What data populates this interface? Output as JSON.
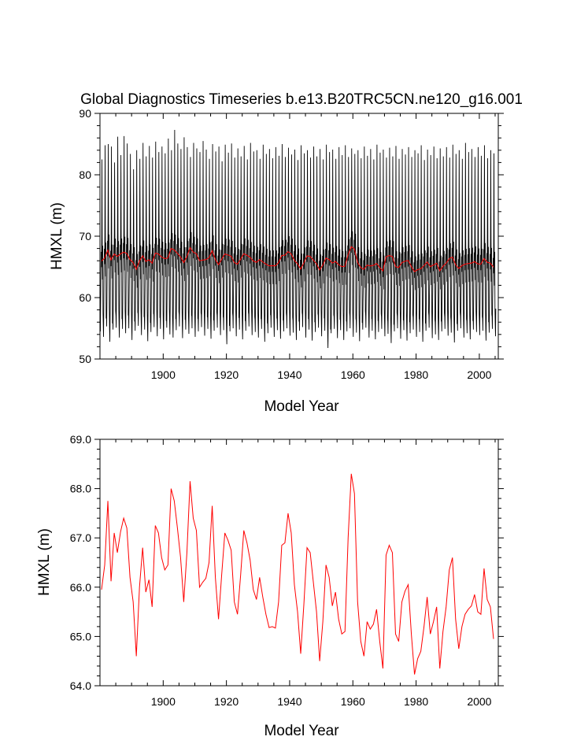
{
  "page": {
    "background": "#ffffff"
  },
  "chart_data": [
    {
      "type": "line",
      "title": "Global Diagnostics Timeseries b.e13.B20TRC5CN.ne120_g16.001",
      "xlabel": "Model Year",
      "ylabel": "HMXL (m)",
      "xlim": [
        1880,
        2006
      ],
      "ylim": [
        50,
        90
      ],
      "x_ticks": [
        1900,
        1920,
        1940,
        1960,
        1980,
        2000
      ],
      "y_ticks": [
        50,
        60,
        70,
        80,
        90
      ],
      "x_tick_labels": [
        "1900",
        "1920",
        "1940",
        "1960",
        "1980",
        "2000"
      ],
      "y_tick_labels": [
        "50",
        "60",
        "70",
        "80",
        "90"
      ],
      "grid": false,
      "legend": "none",
      "series": [
        {
          "kind": "monthly",
          "color": "#000000",
          "description_note": "monthly values with seasonal cycle; annual peak values per year",
          "annual_peak": [
            82.5,
            84.8,
            85.0,
            84.6,
            82.0,
            86.2,
            83.2,
            86.3,
            85.1,
            83.4,
            80.9,
            84.0,
            82.6,
            85.2,
            83.0,
            84.7,
            82.8,
            85.4,
            83.7,
            84.6,
            83.5,
            85.9,
            84.0,
            87.3,
            85.1,
            84.2,
            86.1,
            84.5,
            82.9,
            85.2,
            84.3,
            83.7,
            85.5,
            84.1,
            82.6,
            85.0,
            83.8,
            84.6,
            82.2,
            84.9,
            83.6,
            85.1,
            82.8,
            84.3,
            83.0,
            84.7,
            82.5,
            85.2,
            83.8,
            84.0,
            82.6,
            84.9,
            83.4,
            84.2,
            82.7,
            84.5,
            83.1,
            85.0,
            82.9,
            84.4,
            83.3,
            84.1,
            82.4,
            84.8,
            83.5,
            84.0,
            82.8,
            84.6,
            83.0,
            84.2,
            82.5,
            84.9,
            83.7,
            84.1,
            82.6,
            84.5,
            83.2,
            84.8,
            82.9,
            84.3,
            83.4,
            84.0,
            82.7,
            84.6,
            83.1,
            84.2,
            82.5,
            84.9,
            83.6,
            84.1,
            82.8,
            84.4,
            83.0,
            84.7,
            82.6,
            84.2,
            83.3,
            84.5,
            82.9,
            84.0,
            83.5,
            84.8,
            82.4,
            84.1,
            83.2,
            84.6,
            82.7,
            84.3,
            83.0,
            84.5,
            82.8,
            84.9,
            83.4,
            84.0,
            82.6,
            85.2,
            83.7,
            84.2,
            82.9,
            84.5,
            83.1,
            84.8,
            82.7,
            84.0,
            83.5,
            84.6
          ],
          "annual_trough": [
            54.5,
            53.6,
            55.3,
            52.8,
            54.8,
            55.1,
            53.5,
            54.9,
            54.2,
            55.0,
            53.1,
            54.6,
            55.4,
            53.9,
            54.8,
            52.9,
            54.4,
            55.2,
            53.7,
            54.9,
            53.2,
            55.1,
            54.0,
            53.5,
            54.7,
            55.3,
            53.4,
            54.8,
            54.1,
            55.0,
            53.6,
            54.5,
            55.2,
            53.8,
            54.9,
            53.3,
            54.6,
            55.1,
            53.9,
            54.7,
            52.4,
            54.5,
            55.0,
            53.7,
            54.8,
            53.2,
            54.6,
            55.3,
            53.9,
            54.4,
            53.5,
            54.9,
            52.8,
            54.2,
            55.1,
            53.6,
            54.7,
            53.3,
            54.5,
            55.0,
            53.8,
            54.3,
            53.1,
            54.6,
            55.2,
            53.5,
            54.8,
            53.0,
            54.4,
            55.1,
            53.7,
            54.6,
            51.8,
            54.2,
            54.9,
            53.4,
            54.7,
            53.1,
            54.5,
            55.0,
            53.6,
            54.3,
            52.9,
            54.8,
            55.1,
            53.5,
            54.6,
            53.2,
            54.4,
            54.9,
            53.7,
            54.1,
            52.6,
            54.5,
            55.0,
            53.3,
            54.7,
            53.0,
            54.2,
            54.8,
            53.6,
            54.4,
            52.8,
            54.6,
            55.1,
            53.4,
            54.0,
            53.1,
            54.5,
            54.9,
            53.8,
            54.3,
            52.7,
            54.6,
            55.0,
            53.5,
            54.2,
            53.2,
            54.8,
            54.4,
            53.9,
            54.6,
            53.0,
            54.3,
            54.9,
            53.7
          ]
        },
        {
          "kind": "annual",
          "color": "#ff0000",
          "values_ref": "annual_mean"
        }
      ]
    },
    {
      "type": "line",
      "title": "",
      "xlabel": "Model Year",
      "ylabel": "HMXL (m)",
      "xlim": [
        1880,
        2006
      ],
      "ylim": [
        64.0,
        69.0
      ],
      "x_ticks": [
        1900,
        1920,
        1940,
        1960,
        1980,
        2000
      ],
      "y_ticks": [
        64.0,
        65.0,
        66.0,
        67.0,
        68.0,
        69.0
      ],
      "x_tick_labels": [
        "1900",
        "1920",
        "1940",
        "1960",
        "1980",
        "2000"
      ],
      "y_tick_labels": [
        "64.0",
        "65.0",
        "66.0",
        "67.0",
        "68.0",
        "69.0"
      ],
      "grid": false,
      "legend": "none",
      "series": [
        {
          "kind": "annual",
          "color": "#ff0000",
          "values_ref": "annual_mean"
        }
      ]
    }
  ],
  "annual_mean": {
    "x_start": 1880.5,
    "x_step": 1,
    "values": [
      65.95,
      66.45,
      67.75,
      66.12,
      67.1,
      66.7,
      67.12,
      67.4,
      67.2,
      66.2,
      65.7,
      64.6,
      66.0,
      66.8,
      65.9,
      66.15,
      65.6,
      67.25,
      67.1,
      66.6,
      66.35,
      66.45,
      68.0,
      67.75,
      67.2,
      66.6,
      65.7,
      66.7,
      68.15,
      67.4,
      67.15,
      66.0,
      66.1,
      66.18,
      66.5,
      67.65,
      66.2,
      65.35,
      66.25,
      67.1,
      66.95,
      66.75,
      65.7,
      65.45,
      66.25,
      67.15,
      66.9,
      66.55,
      65.95,
      65.75,
      66.2,
      65.8,
      65.45,
      65.18,
      65.2,
      65.17,
      65.7,
      66.85,
      66.9,
      67.5,
      67.1,
      66.05,
      65.5,
      64.65,
      65.65,
      66.8,
      66.7,
      66.1,
      65.5,
      64.5,
      65.3,
      66.45,
      66.2,
      65.62,
      65.9,
      65.35,
      65.05,
      65.1,
      67.0,
      68.3,
      67.9,
      65.7,
      64.9,
      64.6,
      65.3,
      65.15,
      65.25,
      65.55,
      64.9,
      64.35,
      66.65,
      66.85,
      66.7,
      65.05,
      64.9,
      65.7,
      65.92,
      66.05,
      65.05,
      64.23,
      64.55,
      64.7,
      65.2,
      65.8,
      65.05,
      65.3,
      65.6,
      64.35,
      65.1,
      65.6,
      66.35,
      66.6,
      65.35,
      64.75,
      65.2,
      65.45,
      65.55,
      65.62,
      65.85,
      65.5,
      65.45,
      66.38,
      65.75,
      65.6,
      64.95
    ]
  }
}
